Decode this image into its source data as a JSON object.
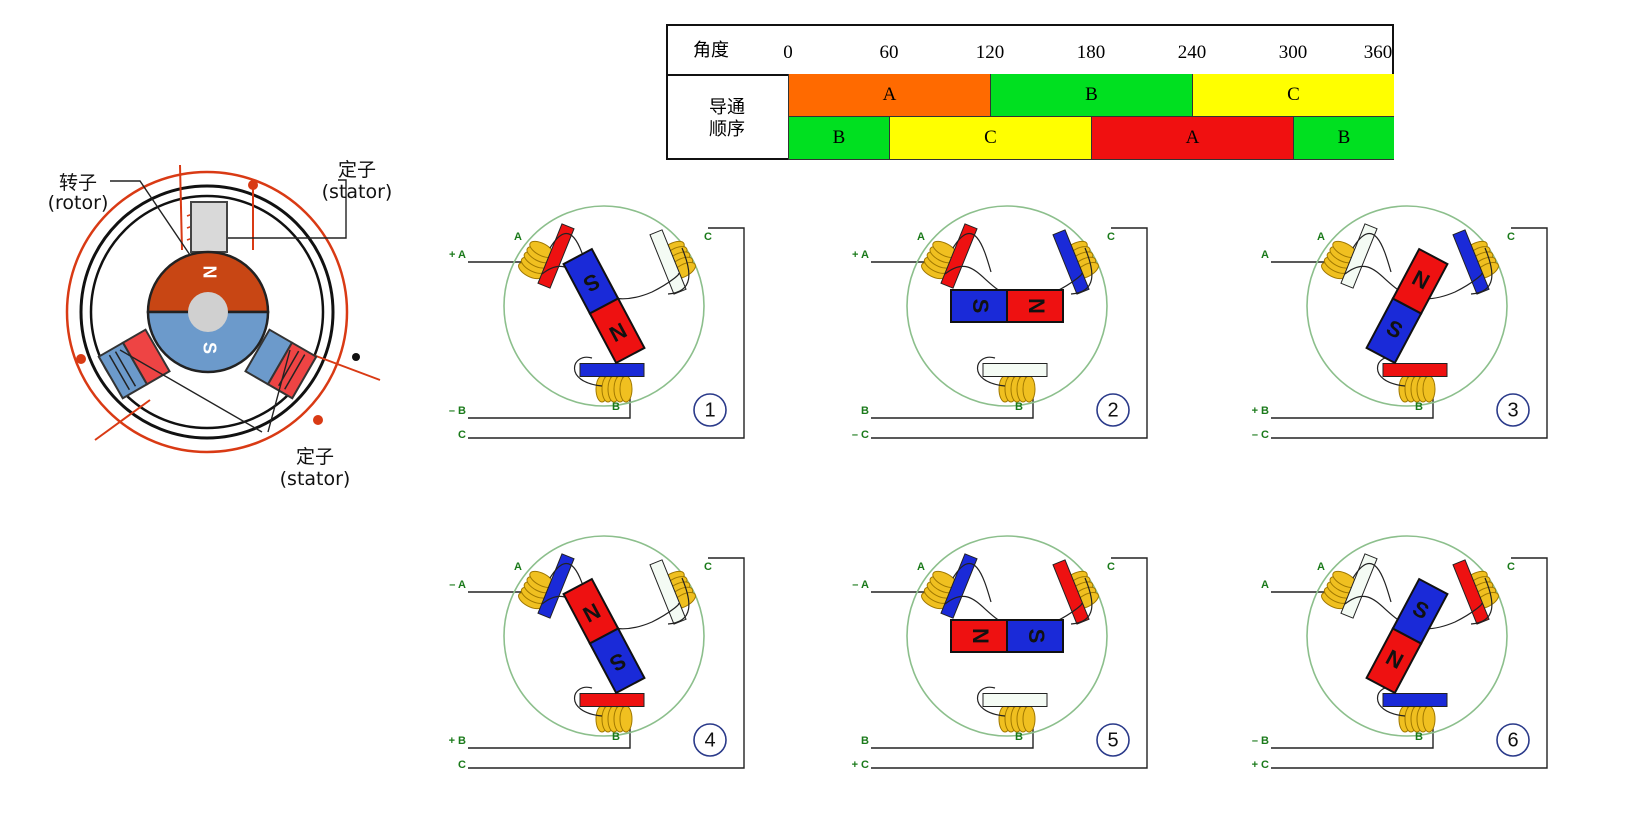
{
  "motor": {
    "rotor_label": "转子",
    "rotor_label_en": "(rotor)",
    "stator_top_label": "定子",
    "stator_top_label_en": "(stator)",
    "stator_bottom_label": "定子",
    "stator_bottom_label_en": "(stator)",
    "pole_n": "N",
    "pole_s": "S"
  },
  "table": {
    "angle_header": "角度",
    "sequence_header_line1": "导通",
    "sequence_header_line2": "顺序",
    "angles": [
      "0",
      "60",
      "120",
      "180",
      "240",
      "300",
      "360"
    ],
    "row1": [
      {
        "label": "A",
        "from": 0,
        "to": 120,
        "color": "#ff6a00"
      },
      {
        "label": "B",
        "from": 120,
        "to": 240,
        "color": "#00e020"
      },
      {
        "label": "C",
        "from": 240,
        "to": 360,
        "color": "#ffff00"
      }
    ],
    "row2": [
      {
        "label": "B",
        "from": 0,
        "to": 60,
        "color": "#00e020"
      },
      {
        "label": "C",
        "from": 60,
        "to": 180,
        "color": "#ffff00"
      },
      {
        "label": "A",
        "from": 180,
        "to": 300,
        "color": "#f01010"
      },
      {
        "label": "B",
        "from": 300,
        "to": 360,
        "color": "#00e020"
      }
    ]
  },
  "panels": [
    {
      "step": "1",
      "term_a": "+ A",
      "term_b": "– B",
      "term_c": "C",
      "coil_a": "red",
      "coil_b": "blue",
      "coil_c": "white",
      "rotor_angle": 62,
      "rotor_left": "S",
      "rotor_right": "N"
    },
    {
      "step": "2",
      "term_a": "+ A",
      "term_b": "B",
      "term_c": "– C",
      "coil_a": "red",
      "coil_b": "white",
      "coil_c": "blue",
      "rotor_angle": 0,
      "rotor_left": "S",
      "rotor_right": "N"
    },
    {
      "step": "3",
      "term_a": "A",
      "term_b": "+ B",
      "term_c": "– C",
      "coil_a": "white",
      "coil_b": "red",
      "coil_c": "blue",
      "rotor_angle": -62,
      "rotor_left": "S",
      "rotor_right": "N"
    },
    {
      "step": "4",
      "term_a": "– A",
      "term_b": "+ B",
      "term_c": "C",
      "coil_a": "blue",
      "coil_b": "red",
      "coil_c": "white",
      "rotor_angle": 62,
      "rotor_left": "N",
      "rotor_right": "S"
    },
    {
      "step": "5",
      "term_a": "– A",
      "term_b": "B",
      "term_c": "+ C",
      "coil_a": "blue",
      "coil_b": "white",
      "coil_c": "red",
      "rotor_angle": 0,
      "rotor_left": "N",
      "rotor_right": "S"
    },
    {
      "step": "6",
      "term_a": "A",
      "term_b": "– B",
      "term_c": "+ C",
      "coil_a": "white",
      "coil_b": "blue",
      "coil_c": "red",
      "rotor_angle": -62,
      "rotor_left": "N",
      "rotor_right": "S"
    }
  ],
  "coil_labels": {
    "a": "A",
    "b": "B",
    "c": "C"
  },
  "colors": {
    "red": "#ee1111",
    "blue": "#1a2ad8",
    "white": "#f4fbf4",
    "circle": "#8cbf8c",
    "coil": "#f0c020",
    "motor_red": "#d93a14",
    "rotor_n": "#c84614",
    "rotor_s": "#6c9acb"
  }
}
